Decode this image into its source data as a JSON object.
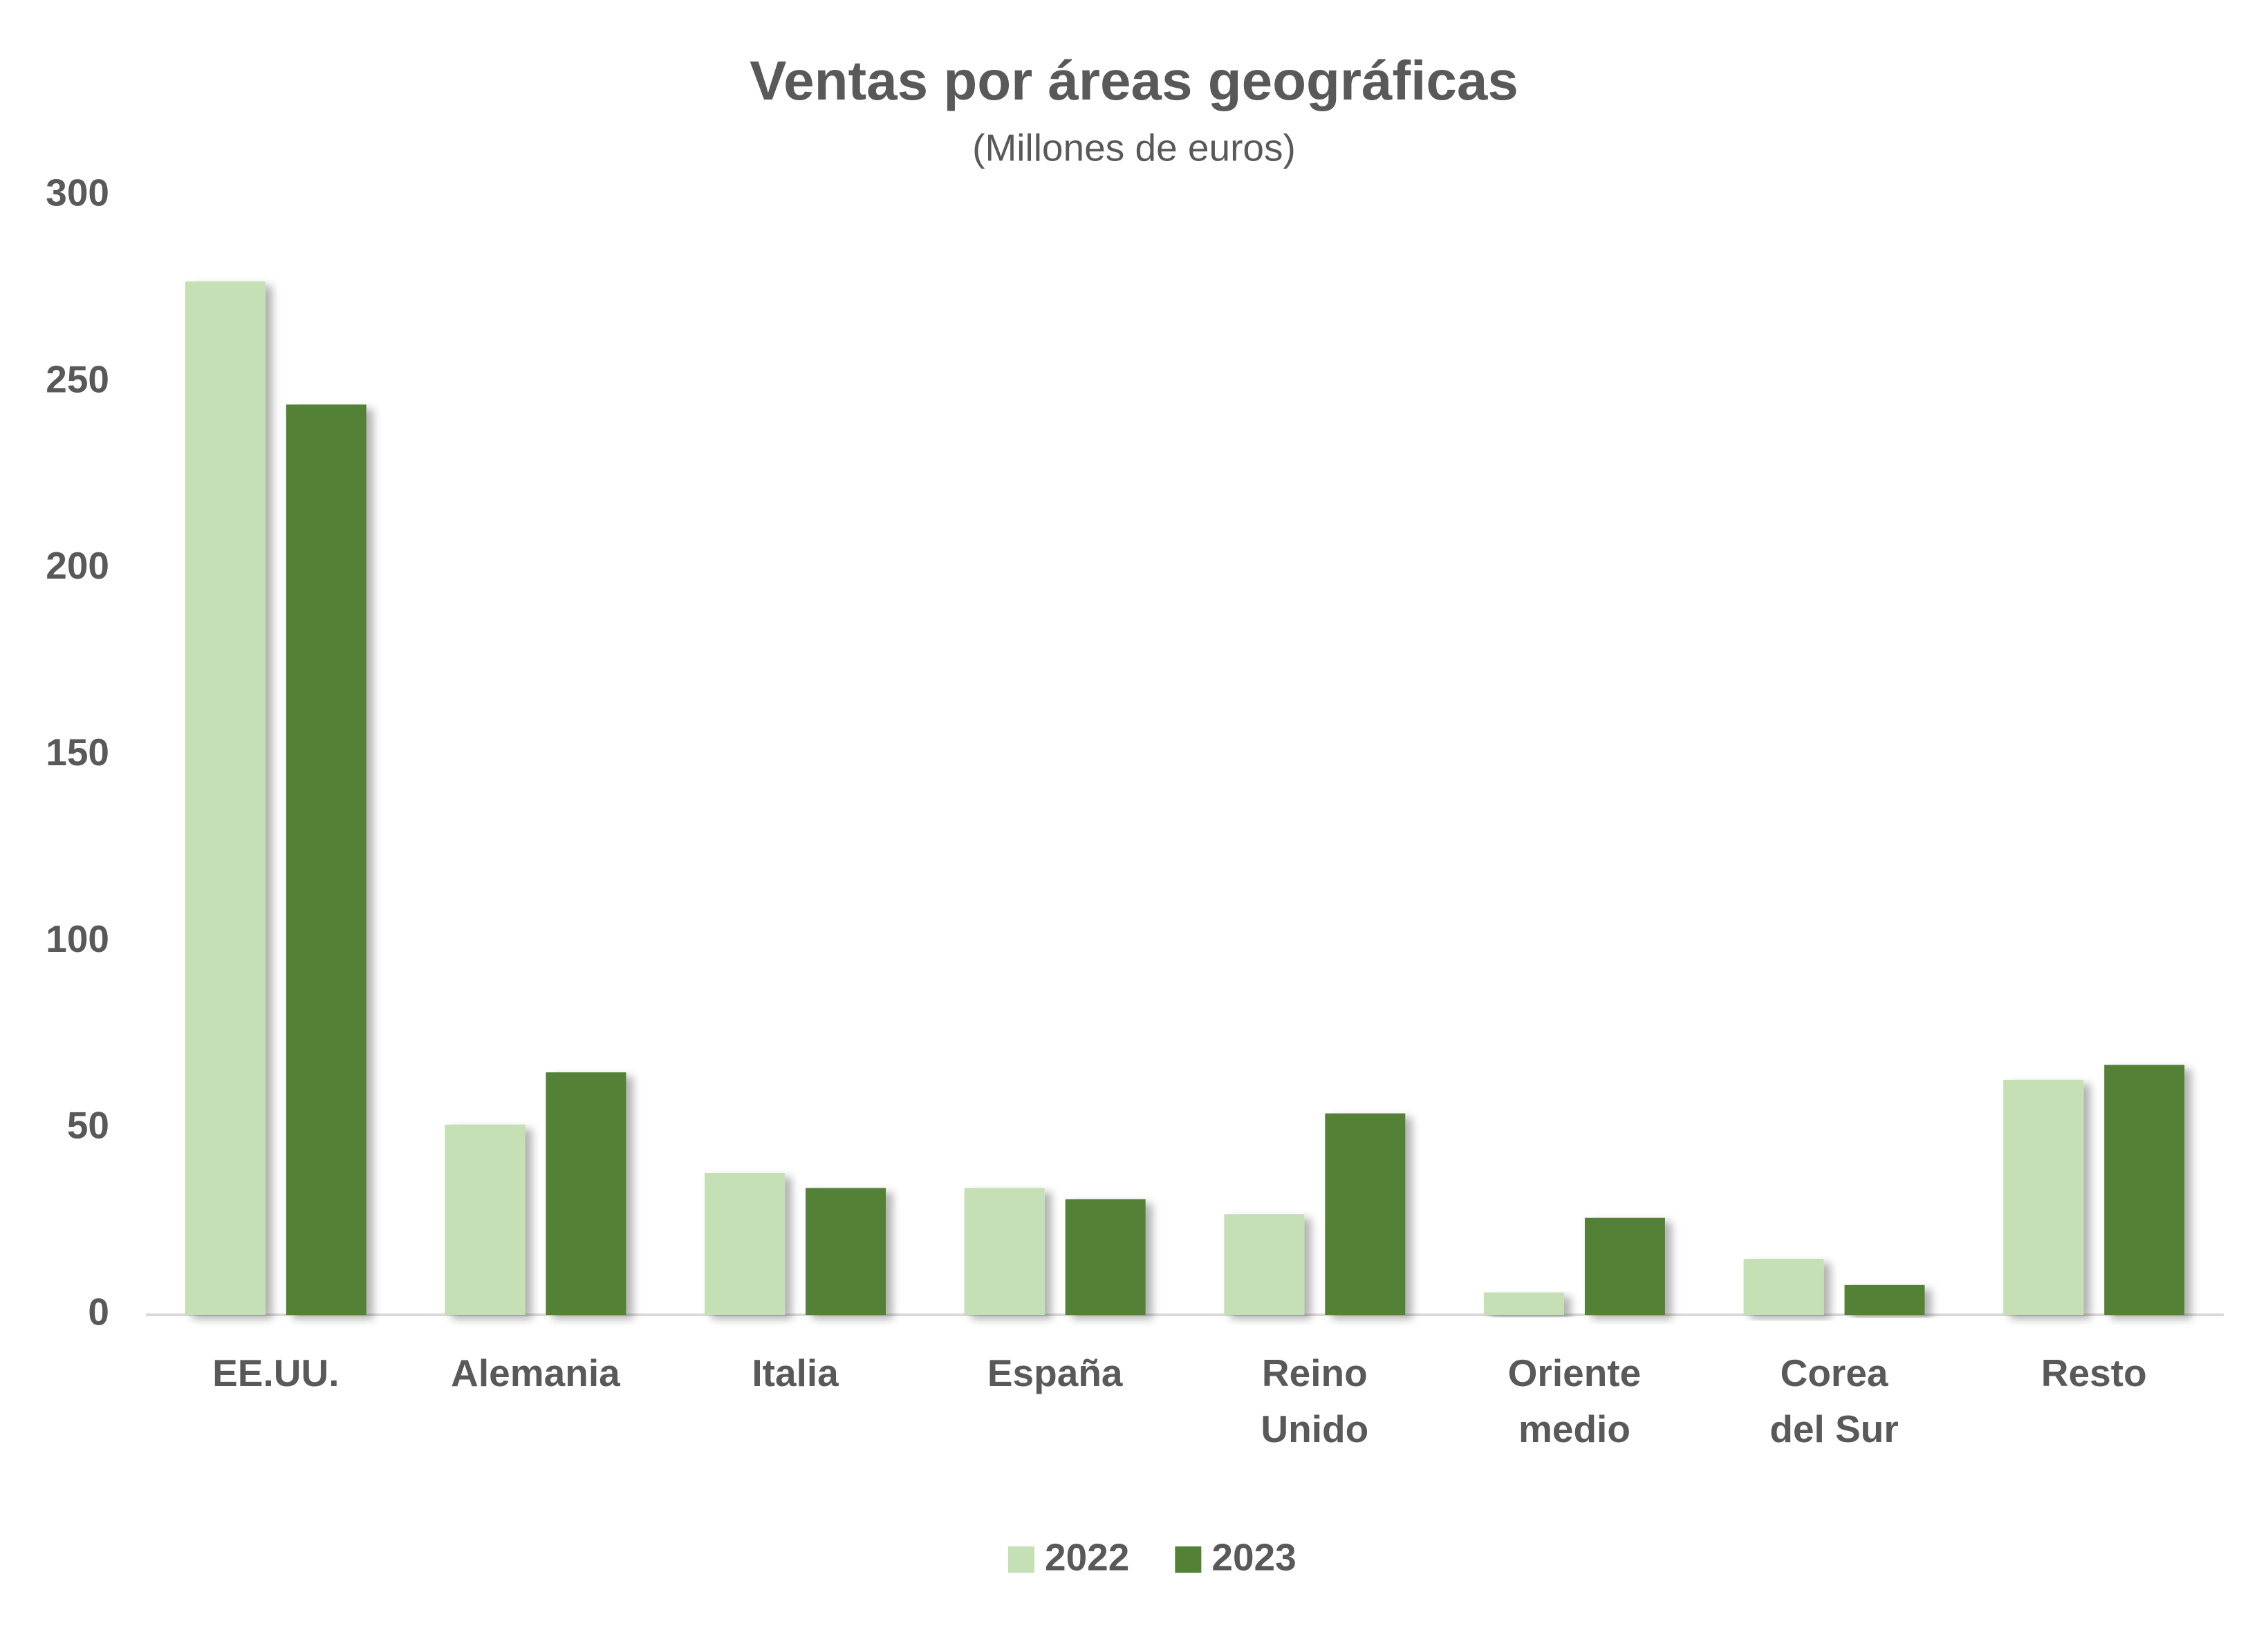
{
  "chart_data": {
    "type": "bar",
    "title": "Ventas por áreas geográficas",
    "subtitle": "(Millones de euros)",
    "categories": [
      "EE.UU.",
      "Alemania",
      "Italia",
      "España",
      "Reino\nUnido",
      "Oriente\nmedio",
      "Corea\ndel Sur",
      "Resto"
    ],
    "series": [
      {
        "name": "2022",
        "color": "#c5e0b4",
        "values": [
          277,
          51,
          38,
          34,
          27,
          6,
          15,
          63
        ]
      },
      {
        "name": "2023",
        "color": "#538135",
        "values": [
          244,
          65,
          34,
          31,
          54,
          26,
          8,
          67
        ]
      }
    ],
    "ylim": [
      0,
      300
    ],
    "yticks": [
      0,
      50,
      100,
      150,
      200,
      250,
      300
    ],
    "grid": false
  }
}
